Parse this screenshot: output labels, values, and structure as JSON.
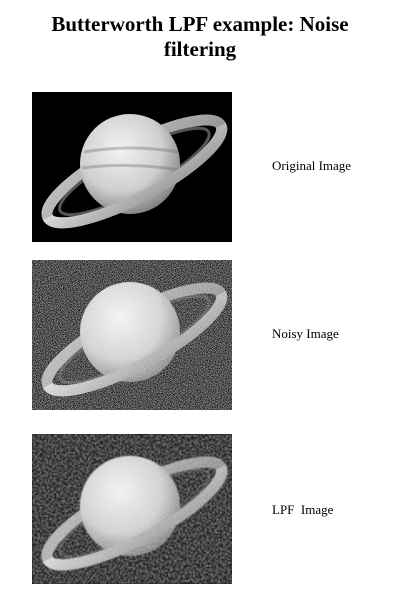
{
  "title": {
    "line1": "Butterworth LPF example: Noise",
    "line2": "filtering"
  },
  "figures": [
    {
      "caption": "Original Image",
      "image": "saturn-original"
    },
    {
      "caption": "Noisy Image",
      "image": "saturn-noisy"
    },
    {
      "caption": "LPF  Image",
      "image": "saturn-lpf-filtered"
    }
  ]
}
